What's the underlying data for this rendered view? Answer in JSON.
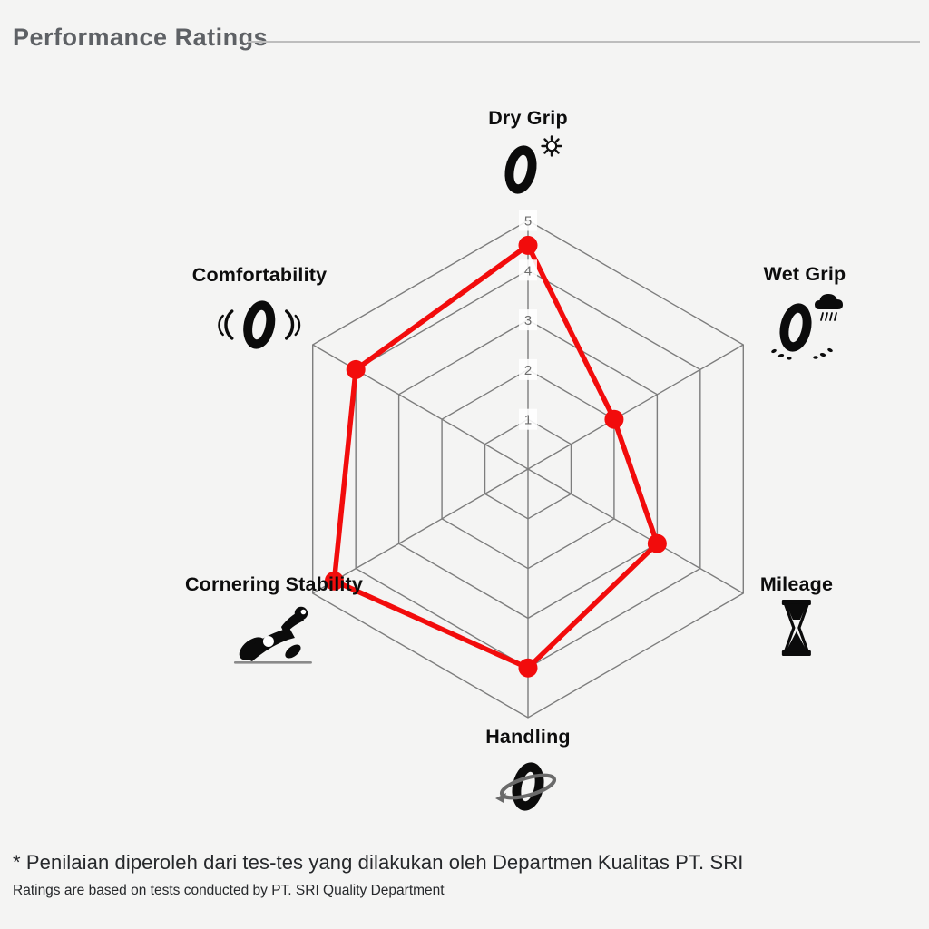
{
  "header": {
    "title": "Performance Ratings"
  },
  "chart_data": {
    "type": "radar",
    "title": "Performance Ratings",
    "categories": [
      "Dry Grip",
      "Wet Grip",
      "Mileage",
      "Handling",
      "Cornering Stability",
      "Comfortability"
    ],
    "values": [
      4.5,
      2,
      3,
      4,
      4.5,
      4
    ],
    "scale": {
      "min": 0,
      "max": 5,
      "ticks": [
        1,
        2,
        3,
        4,
        5
      ]
    },
    "grid": "hexagonal-rings-with-spokes",
    "legend": "none",
    "series_color": "#f20c0c",
    "grid_color": "#7d7d7d",
    "tick_color": "#6e6e6e",
    "icons": [
      "tire-sun-icon",
      "tire-rain-icon",
      "hourglass-icon",
      "tire-rotation-icon",
      "motorcycle-lean-icon",
      "tire-vibration-icon"
    ]
  },
  "footnote": {
    "line1": "* Penilaian diperoleh dari tes-tes yang dilakukan oleh Departmen Kualitas PT. SRI",
    "line2": "Ratings are based on tests conducted by PT. SRI Quality Department"
  }
}
